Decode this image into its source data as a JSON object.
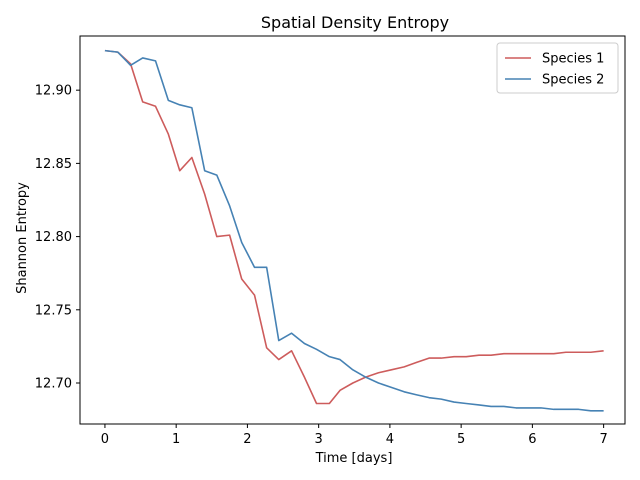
{
  "chart_data": {
    "type": "line",
    "title": "Spatial Density Entropy",
    "xlabel": "Time [days]",
    "ylabel": "Shannon Entropy",
    "xlim": [
      -0.35,
      7.3
    ],
    "ylim": [
      12.672,
      12.937
    ],
    "xticks": [
      0,
      1,
      2,
      3,
      4,
      5,
      6,
      7
    ],
    "yticks": [
      12.7,
      12.75,
      12.8,
      12.85,
      12.9
    ],
    "ytick_format": 2,
    "grid": false,
    "legend_position": "top-right",
    "series": [
      {
        "name": "Species 1",
        "color": "#cd5c5c",
        "x": [
          0.0,
          0.18,
          0.36,
          0.53,
          0.71,
          0.89,
          1.05,
          1.22,
          1.4,
          1.57,
          1.75,
          1.92,
          2.1,
          2.27,
          2.44,
          2.62,
          2.8,
          2.97,
          3.15,
          3.3,
          3.48,
          3.66,
          3.84,
          4.02,
          4.2,
          4.37,
          4.55,
          4.72,
          4.9,
          5.07,
          5.25,
          5.42,
          5.6,
          5.77,
          5.95,
          6.12,
          6.3,
          6.47,
          6.65,
          6.82,
          7.0
        ],
        "y": [
          12.927,
          12.926,
          12.918,
          12.892,
          12.889,
          12.87,
          12.845,
          12.854,
          12.829,
          12.8,
          12.801,
          12.771,
          12.76,
          12.724,
          12.716,
          12.722,
          12.704,
          12.686,
          12.686,
          12.695,
          12.7,
          12.704,
          12.707,
          12.709,
          12.711,
          12.714,
          12.717,
          12.717,
          12.718,
          12.718,
          12.719,
          12.719,
          12.72,
          12.72,
          12.72,
          12.72,
          12.72,
          12.721,
          12.721,
          12.721,
          12.722
        ]
      },
      {
        "name": "Species 2",
        "color": "#4682b4",
        "x": [
          0.0,
          0.18,
          0.36,
          0.53,
          0.71,
          0.89,
          1.05,
          1.22,
          1.4,
          1.57,
          1.75,
          1.92,
          2.1,
          2.27,
          2.44,
          2.62,
          2.8,
          2.97,
          3.15,
          3.3,
          3.48,
          3.66,
          3.84,
          4.02,
          4.2,
          4.37,
          4.55,
          4.72,
          4.9,
          5.07,
          5.25,
          5.42,
          5.6,
          5.77,
          5.95,
          6.12,
          6.3,
          6.47,
          6.65,
          6.82,
          7.0
        ],
        "y": [
          12.927,
          12.926,
          12.917,
          12.922,
          12.92,
          12.893,
          12.89,
          12.888,
          12.845,
          12.842,
          12.821,
          12.796,
          12.779,
          12.779,
          12.729,
          12.734,
          12.727,
          12.723,
          12.718,
          12.716,
          12.709,
          12.704,
          12.7,
          12.697,
          12.694,
          12.692,
          12.69,
          12.689,
          12.687,
          12.686,
          12.685,
          12.684,
          12.684,
          12.683,
          12.683,
          12.683,
          12.682,
          12.682,
          12.682,
          12.681,
          12.681
        ]
      }
    ]
  }
}
